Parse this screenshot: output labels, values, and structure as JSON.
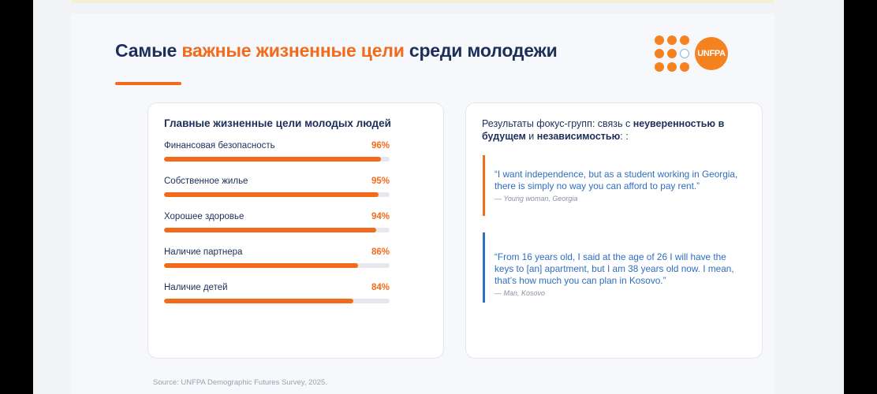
{
  "title": {
    "part1": "Самые",
    "accent": "важные жизненные цели",
    "part2": "среди молодежи"
  },
  "logo": {
    "text": "UNFPA",
    "accent_color": "#f58220"
  },
  "goals_card": {
    "heading": "Главные жизненные цели молодых людей",
    "items": [
      {
        "label": "Финансовая безопасность",
        "value_text": "96%",
        "value": 96
      },
      {
        "label": "Собственное жилье",
        "value_text": "95%",
        "value": 95
      },
      {
        "label": "Хорошее здоровье",
        "value_text": "94%",
        "value": 94
      },
      {
        "label": "Наличие партнера",
        "value_text": "86%",
        "value": 86
      },
      {
        "label": "Наличие детей",
        "value_text": "84%",
        "value": 84
      }
    ]
  },
  "focus_card": {
    "heading_pre": "Результаты фокус-групп: связь с ",
    "heading_b1": "неуверенностью в будущем",
    "heading_mid": " и ",
    "heading_b2": "независимостью",
    "heading_post": ": :",
    "quotes": [
      {
        "text": "“I want independence, but as a student working in Georgia, there is simply no way you can afford to pay rent.”",
        "author": "— Young woman, Georgia",
        "color": "#f26a1b"
      },
      {
        "text": "“From 16 years old, I said at the age of 26 I will have the keys to [an] apartment, but I am 38 years old now. I mean, that’s how much you can plan in Kosovo.”",
        "author": "— Man, Kosovo",
        "color": "#2c6fc3"
      }
    ]
  },
  "source": "Source: UNFPA Demographic Futures Survey, 2025.",
  "colors": {
    "accent": "#f26a1b",
    "navy": "#1c2e5a",
    "quote_blue": "#2e6ec0"
  }
}
